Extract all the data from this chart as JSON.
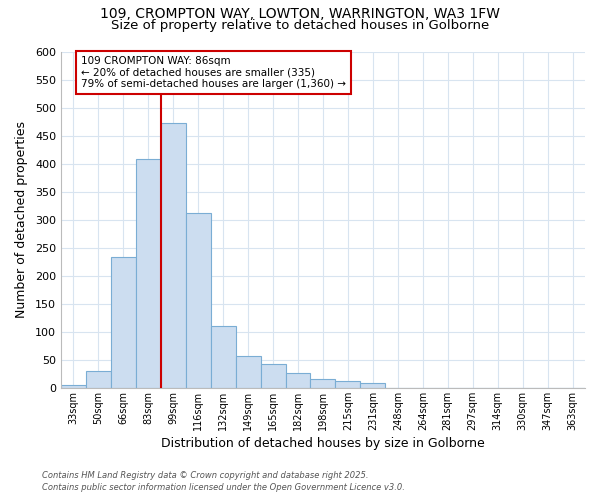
{
  "title_line1": "109, CROMPTON WAY, LOWTON, WARRINGTON, WA3 1FW",
  "title_line2": "Size of property relative to detached houses in Golborne",
  "xlabel": "Distribution of detached houses by size in Golborne",
  "ylabel": "Number of detached properties",
  "categories": [
    "33sqm",
    "50sqm",
    "66sqm",
    "83sqm",
    "99sqm",
    "116sqm",
    "132sqm",
    "149sqm",
    "165sqm",
    "182sqm",
    "198sqm",
    "215sqm",
    "231sqm",
    "248sqm",
    "264sqm",
    "281sqm",
    "297sqm",
    "314sqm",
    "330sqm",
    "347sqm",
    "363sqm"
  ],
  "values": [
    5,
    30,
    233,
    408,
    473,
    312,
    110,
    57,
    42,
    27,
    15,
    12,
    9,
    0,
    0,
    0,
    0,
    0,
    0,
    0,
    0
  ],
  "bar_color": "#ccddf0",
  "bar_edge_color": "#7aadd4",
  "grid_color": "#d8e4f0",
  "vline_x_idx": 3,
  "vline_color": "#cc0000",
  "annotation_text": "109 CROMPTON WAY: 86sqm\n← 20% of detached houses are smaller (335)\n79% of semi-detached houses are larger (1,360) →",
  "annotation_box_facecolor": "#ffffff",
  "annotation_box_edgecolor": "#cc0000",
  "ylim_max": 600,
  "yticks": [
    0,
    50,
    100,
    150,
    200,
    250,
    300,
    350,
    400,
    450,
    500,
    550,
    600
  ],
  "footer": "Contains HM Land Registry data © Crown copyright and database right 2025.\nContains public sector information licensed under the Open Government Licence v3.0.",
  "bg_color": "#ffffff",
  "plot_bg_color": "#ffffff"
}
